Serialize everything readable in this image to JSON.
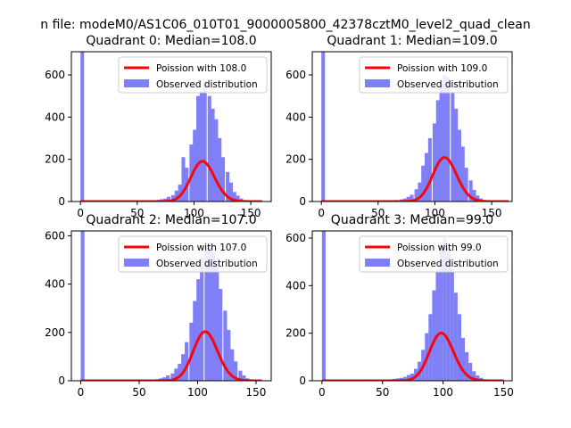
{
  "figure": {
    "suptitle": "n file: modeM0/AS1C06_010T01_9000005800_42378cztM0_level2_quad_clean"
  },
  "colors": {
    "hist": "#7f7ff7",
    "poisson": "#ff0000",
    "axes": "#000000"
  },
  "chart_data": [
    {
      "type": "bar",
      "title": "Quadrant 0: Median=108.0",
      "xlim": [
        -8,
        168
      ],
      "ylim": [
        0,
        710
      ],
      "xticks": [
        0,
        50,
        100,
        150
      ],
      "yticks": [
        0,
        200,
        400,
        600
      ],
      "legend": [
        "Poission with 108.0",
        "Observed distribution"
      ],
      "legend_position": "upper right",
      "hist": {
        "bin_width": 3.2,
        "bins": [
          [
            0,
            710
          ],
          [
            60,
            4
          ],
          [
            63,
            6
          ],
          [
            67,
            8
          ],
          [
            70,
            11
          ],
          [
            73,
            14
          ],
          [
            76,
            22
          ],
          [
            80,
            30
          ],
          [
            83,
            52
          ],
          [
            86,
            80
          ],
          [
            89,
            210
          ],
          [
            92,
            160
          ],
          [
            96,
            270
          ],
          [
            99,
            340
          ],
          [
            102,
            500
          ],
          [
            105,
            520
          ],
          [
            108,
            570
          ],
          [
            112,
            500
          ],
          [
            115,
            440
          ],
          [
            118,
            390
          ],
          [
            121,
            300
          ],
          [
            124,
            210
          ],
          [
            128,
            140
          ],
          [
            131,
            90
          ],
          [
            134,
            45
          ],
          [
            137,
            28
          ],
          [
            140,
            14
          ],
          [
            144,
            6
          ],
          [
            147,
            3
          ]
        ]
      },
      "poisson": {
        "lambda": 108.0,
        "scale": 3.2,
        "x": [
          0,
          160
        ]
      }
    },
    {
      "type": "bar",
      "title": "Quadrant 1: Median=109.0",
      "xlim": [
        -8,
        168
      ],
      "ylim": [
        0,
        710
      ],
      "xticks": [
        0,
        50,
        100,
        150
      ],
      "yticks": [
        0,
        200,
        400,
        600
      ],
      "legend": [
        "Poission with 109.0",
        "Observed distribution"
      ],
      "legend_position": "upper right",
      "hist": {
        "bin_width": 3.2,
        "bins": [
          [
            0,
            710
          ],
          [
            62,
            5
          ],
          [
            65,
            7
          ],
          [
            69,
            10
          ],
          [
            72,
            14
          ],
          [
            75,
            22
          ],
          [
            78,
            32
          ],
          [
            82,
            58
          ],
          [
            85,
            90
          ],
          [
            88,
            170
          ],
          [
            91,
            230
          ],
          [
            94,
            300
          ],
          [
            98,
            370
          ],
          [
            101,
            480
          ],
          [
            104,
            560
          ],
          [
            107,
            600
          ],
          [
            110,
            590
          ],
          [
            114,
            520
          ],
          [
            117,
            440
          ],
          [
            120,
            340
          ],
          [
            123,
            260
          ],
          [
            126,
            160
          ],
          [
            130,
            100
          ],
          [
            133,
            55
          ],
          [
            136,
            28
          ],
          [
            139,
            14
          ],
          [
            142,
            6
          ],
          [
            146,
            3
          ]
        ]
      },
      "poisson": {
        "lambda": 109.0,
        "scale": 3.2,
        "x": [
          0,
          165
        ]
      }
    },
    {
      "type": "bar",
      "title": "Quadrant 2: Median=107.0",
      "xlim": [
        -8,
        163
      ],
      "ylim": [
        0,
        620
      ],
      "xticks": [
        0,
        50,
        100,
        150
      ],
      "yticks": [
        0,
        200,
        400,
        600
      ],
      "legend": [
        "Poission with 107.0",
        "Observed distribution"
      ],
      "legend_position": "upper right",
      "hist": {
        "bin_width": 3.2,
        "bins": [
          [
            0,
            620
          ],
          [
            60,
            4
          ],
          [
            64,
            7
          ],
          [
            67,
            10
          ],
          [
            70,
            14
          ],
          [
            73,
            22
          ],
          [
            77,
            30
          ],
          [
            80,
            50
          ],
          [
            83,
            70
          ],
          [
            86,
            110
          ],
          [
            89,
            160
          ],
          [
            93,
            240
          ],
          [
            96,
            330
          ],
          [
            99,
            420
          ],
          [
            102,
            510
          ],
          [
            106,
            560
          ],
          [
            109,
            570
          ],
          [
            112,
            530
          ],
          [
            115,
            470
          ],
          [
            118,
            380
          ],
          [
            122,
            290
          ],
          [
            125,
            210
          ],
          [
            128,
            130
          ],
          [
            131,
            80
          ],
          [
            135,
            42
          ],
          [
            138,
            22
          ],
          [
            141,
            10
          ],
          [
            144,
            4
          ]
        ]
      },
      "poisson": {
        "lambda": 107.0,
        "scale": 3.2,
        "x": [
          0,
          155
        ]
      }
    },
    {
      "type": "bar",
      "title": "Quadrant 3: Median=99.0",
      "xlim": [
        -8,
        157
      ],
      "ylim": [
        0,
        630
      ],
      "xticks": [
        0,
        50,
        100,
        150
      ],
      "yticks": [
        0,
        200,
        400,
        600
      ],
      "legend": [
        "Poission with 99.0",
        "Observed distribution"
      ],
      "legend_position": "upper right",
      "hist": {
        "bin_width": 3.0,
        "bins": [
          [
            0,
            630
          ],
          [
            35,
            4
          ],
          [
            52,
            5
          ],
          [
            55,
            6
          ],
          [
            58,
            8
          ],
          [
            61,
            10
          ],
          [
            64,
            12
          ],
          [
            67,
            16
          ],
          [
            70,
            24
          ],
          [
            73,
            30
          ],
          [
            76,
            50
          ],
          [
            79,
            80
          ],
          [
            82,
            130
          ],
          [
            85,
            200
          ],
          [
            88,
            280
          ],
          [
            91,
            380
          ],
          [
            94,
            470
          ],
          [
            97,
            560
          ],
          [
            100,
            600
          ],
          [
            103,
            560
          ],
          [
            106,
            470
          ],
          [
            109,
            370
          ],
          [
            112,
            280
          ],
          [
            115,
            180
          ],
          [
            118,
            120
          ],
          [
            121,
            75
          ],
          [
            124,
            40
          ],
          [
            127,
            22
          ],
          [
            130,
            12
          ],
          [
            133,
            6
          ],
          [
            136,
            3
          ]
        ]
      },
      "poisson": {
        "lambda": 99.0,
        "scale": 3.0,
        "x": [
          0,
          150
        ]
      }
    }
  ]
}
